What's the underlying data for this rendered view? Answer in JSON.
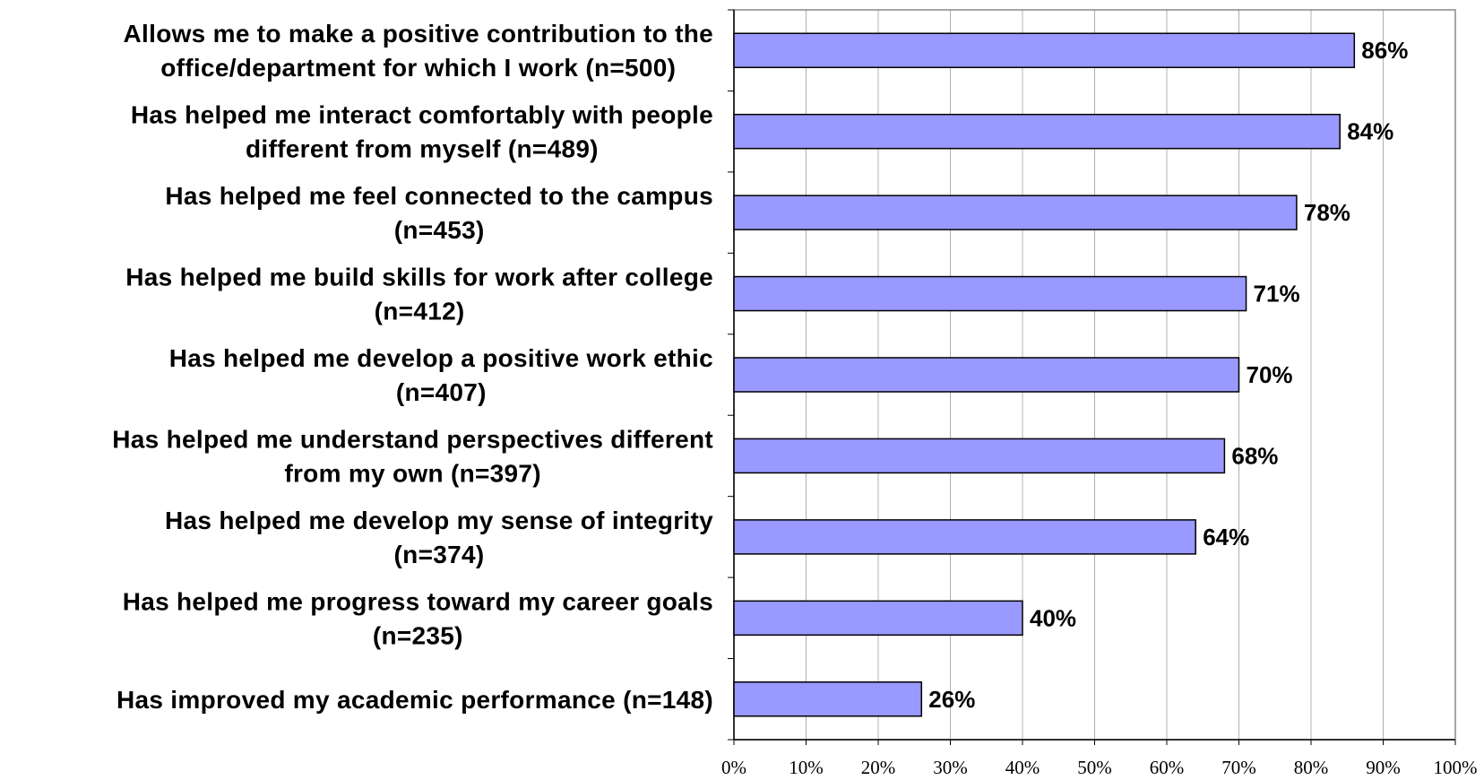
{
  "chart_data": {
    "type": "bar",
    "orientation": "horizontal",
    "categories": [
      [
        "Allows me to make a positive contribution to the",
        "office/department for which I work (n=500)"
      ],
      [
        "Has helped me interact comfortably with people",
        "different from myself (n=489)"
      ],
      [
        "Has helped me feel connected to the campus",
        "(n=453)"
      ],
      [
        "Has helped me build skills for work after college",
        "(n=412)"
      ],
      [
        "Has helped me develop a positive work ethic",
        "(n=407)"
      ],
      [
        "Has helped me understand perspectives different",
        "from my own (n=397)"
      ],
      [
        "Has helped me develop my sense of integrity",
        "(n=374)"
      ],
      [
        "Has helped me progress toward my career goals",
        "(n=235)"
      ],
      [
        "Has improved my academic performance (n=148)"
      ]
    ],
    "values": [
      86,
      84,
      78,
      71,
      70,
      68,
      64,
      40,
      26
    ],
    "value_labels": [
      "86%",
      "84%",
      "78%",
      "71%",
      "70%",
      "68%",
      "64%",
      "40%",
      "26%"
    ],
    "color": "#9999ff",
    "xlim": [
      0,
      100
    ],
    "xticks": [
      {
        "value": 0,
        "label": "0%"
      },
      {
        "value": 10,
        "label": "10%"
      },
      {
        "value": 20,
        "label": "20%"
      },
      {
        "value": 30,
        "label": "30%"
      },
      {
        "value": 40,
        "label": "40%"
      },
      {
        "value": 50,
        "label": "50%"
      },
      {
        "value": 60,
        "label": "60%"
      },
      {
        "value": 70,
        "label": "70%"
      },
      {
        "value": 80,
        "label": "80%"
      },
      {
        "value": 90,
        "label": "90%"
      },
      {
        "value": 100,
        "label": "100%"
      }
    ],
    "grid": true
  }
}
